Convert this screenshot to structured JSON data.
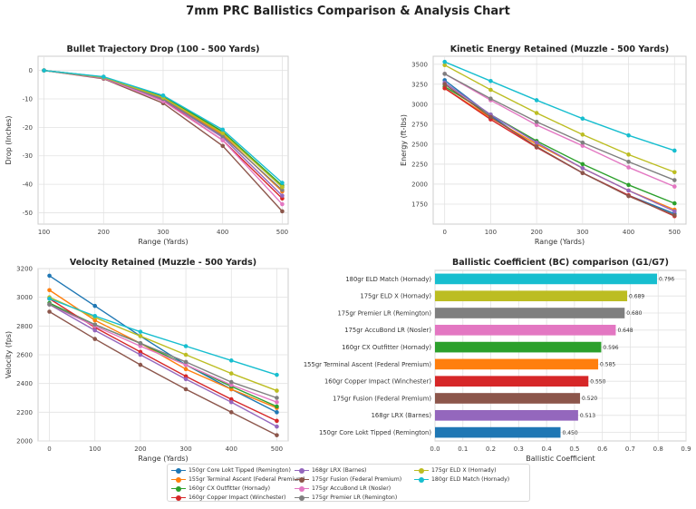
{
  "title": "7mm PRC Ballistics Comparison & Analysis Chart",
  "chart_data": [
    {
      "id": "trajectory",
      "type": "line",
      "title": "Bullet Trajectory Drop (100 - 500 Yards)",
      "xlabel": "Range (Yards)",
      "ylabel": "Drop (Inches)",
      "x": [
        100,
        200,
        300,
        400,
        500
      ],
      "xlim": [
        90,
        510
      ],
      "ylim": [
        -54,
        5
      ],
      "xticks": [
        100,
        200,
        300,
        400,
        500
      ],
      "yticks": [
        0,
        -10,
        -20,
        -30,
        -40,
        -50
      ],
      "grid": true,
      "series": [
        {
          "name": "150gr Core Lokt Tipped (Remington)",
          "values": [
            0,
            -2.3,
            -9.0,
            -21.5,
            -41.0
          ]
        },
        {
          "name": "155gr Terminal Ascent (Federal Premium)",
          "values": [
            0,
            -2.4,
            -9.6,
            -22.5,
            -42.5
          ]
        },
        {
          "name": "160gr CX Outfitter (Hornady)",
          "values": [
            0,
            -2.3,
            -9.0,
            -21.5,
            -40.5
          ]
        },
        {
          "name": "160gr Copper Impact (Winchester)",
          "values": [
            0,
            -2.6,
            -10.5,
            -24.5,
            -45.0
          ]
        },
        {
          "name": "168gr LRX (Barnes)",
          "values": [
            0,
            -2.6,
            -10.2,
            -23.5,
            -44.0
          ]
        },
        {
          "name": "175gr Fusion (Federal Premium)",
          "values": [
            0,
            -2.9,
            -11.5,
            -26.5,
            -49.5
          ]
        },
        {
          "name": "175gr AccuBond LR (Nosler)",
          "values": [
            0,
            -2.7,
            -10.8,
            -24.5,
            -47.0
          ]
        },
        {
          "name": "175gr Premier LR (Remington)",
          "values": [
            0,
            -2.5,
            -10.0,
            -23.0,
            -42.0
          ]
        },
        {
          "name": "175gr ELD X (Hornady)",
          "values": [
            0,
            -2.4,
            -9.5,
            -22.0,
            -41.0
          ]
        },
        {
          "name": "180gr ELD Match (Hornady)",
          "values": [
            0,
            -2.2,
            -8.8,
            -20.8,
            -39.5
          ]
        }
      ]
    },
    {
      "id": "energy",
      "type": "line",
      "title": "Kinetic Energy Retained (Muzzle - 500 Yards)",
      "xlabel": "Range (Yards)",
      "ylabel": "Energy (ft-lbs)",
      "x": [
        0,
        100,
        200,
        300,
        400,
        500
      ],
      "xlim": [
        -25,
        525
      ],
      "ylim": [
        1500,
        3600
      ],
      "xticks": [
        0,
        100,
        200,
        300,
        400,
        500
      ],
      "yticks": [
        1750,
        2000,
        2250,
        2500,
        2750,
        3000,
        3250,
        3500
      ],
      "grid": true,
      "series": [
        {
          "name": "150gr Core Lokt Tipped (Remington)",
          "values": [
            3300,
            2860,
            2460,
            2140,
            1860,
            1630
          ]
        },
        {
          "name": "155gr Terminal Ascent (Federal Premium)",
          "values": [
            3200,
            2830,
            2500,
            2200,
            1920,
            1680
          ]
        },
        {
          "name": "160gr CX Outfitter (Hornady)",
          "values": [
            3220,
            2870,
            2540,
            2250,
            1990,
            1760
          ]
        },
        {
          "name": "160gr Copper Impact (Winchester)",
          "values": [
            3200,
            2810,
            2460,
            2140,
            1860,
            1600
          ]
        },
        {
          "name": "168gr LRX (Barnes)",
          "values": [
            3270,
            2870,
            2520,
            2200,
            1920,
            1660
          ]
        },
        {
          "name": "175gr Fusion (Federal Premium)",
          "values": [
            3250,
            2840,
            2470,
            2140,
            1850,
            1610
          ]
        },
        {
          "name": "175gr AccuBond LR (Nosler)",
          "values": [
            3380,
            3050,
            2740,
            2480,
            2210,
            1970
          ]
        },
        {
          "name": "175gr Premier LR (Remington)",
          "values": [
            3380,
            3070,
            2780,
            2520,
            2280,
            2050
          ]
        },
        {
          "name": "175gr ELD X (Hornady)",
          "values": [
            3490,
            3180,
            2890,
            2620,
            2370,
            2150
          ]
        },
        {
          "name": "180gr ELD Match (Hornady)",
          "values": [
            3530,
            3290,
            3050,
            2820,
            2610,
            2420
          ]
        }
      ]
    },
    {
      "id": "velocity",
      "type": "line",
      "title": "Velocity Retained (Muzzle - 500 Yards)",
      "xlabel": "Range (Yards)",
      "ylabel": "Velocity (fps)",
      "x": [
        0,
        100,
        200,
        300,
        400,
        500
      ],
      "xlim": [
        -25,
        525
      ],
      "ylim": [
        2000,
        3200
      ],
      "xticks": [
        0,
        100,
        200,
        300,
        400,
        500
      ],
      "yticks": [
        2000,
        2200,
        2400,
        2600,
        2800,
        3000,
        3200
      ],
      "grid": true,
      "series": [
        {
          "name": "150gr Core Lokt Tipped (Remington)",
          "values": [
            3150,
            2940,
            2730,
            2530,
            2360,
            2200
          ]
        },
        {
          "name": "155gr Terminal Ascent (Federal Premium)",
          "values": [
            3050,
            2840,
            2680,
            2500,
            2360,
            2230
          ]
        },
        {
          "name": "160gr CX Outfitter (Hornady)",
          "values": [
            2960,
            2810,
            2680,
            2530,
            2380,
            2240
          ]
        },
        {
          "name": "160gr Copper Impact (Winchester)",
          "values": [
            2990,
            2790,
            2620,
            2450,
            2290,
            2140
          ]
        },
        {
          "name": "168gr LRX (Barnes)",
          "values": [
            2950,
            2770,
            2600,
            2430,
            2270,
            2100
          ]
        },
        {
          "name": "175gr Fusion (Federal Premium)",
          "values": [
            2900,
            2710,
            2530,
            2360,
            2200,
            2040
          ]
        },
        {
          "name": "175gr AccuBond LR (Nosler)",
          "values": [
            2950,
            2800,
            2660,
            2530,
            2390,
            2270
          ]
        },
        {
          "name": "175gr Premier LR (Remington)",
          "values": [
            2950,
            2810,
            2680,
            2550,
            2410,
            2300
          ]
        },
        {
          "name": "175gr ELD X (Hornady)",
          "values": [
            3000,
            2860,
            2730,
            2600,
            2470,
            2350
          ]
        },
        {
          "name": "180gr ELD Match (Hornady)",
          "values": [
            2990,
            2870,
            2760,
            2660,
            2560,
            2460
          ]
        }
      ]
    },
    {
      "id": "bc",
      "type": "bar",
      "orientation": "horizontal",
      "title": "Ballistic Coefficient (BC) comparison (G1/G7)",
      "xlabel": "Ballistic Coefficient",
      "ylabel": "",
      "xlim": [
        0,
        0.9
      ],
      "xticks": [
        0.0,
        0.1,
        0.2,
        0.3,
        0.4,
        0.5,
        0.6,
        0.7,
        0.8,
        0.9
      ],
      "grid": true,
      "categories": [
        "180gr ELD Match (Hornady)",
        "175gr ELD X (Hornady)",
        "175gr Premier LR (Remington)",
        "175gr AccuBond LR (Nosler)",
        "160gr CX Outfitter (Hornady)",
        "155gr Terminal Ascent (Federal Premium)",
        "160gr Copper Impact (Winchester)",
        "175gr Fusion (Federal Premium)",
        "168gr LRX (Barnes)",
        "150gr Core Lokt Tipped (Remington)"
      ],
      "values": [
        0.796,
        0.689,
        0.68,
        0.648,
        0.596,
        0.585,
        0.55,
        0.52,
        0.513,
        0.45
      ],
      "value_labels": [
        "0.796",
        "0.689",
        "0.680",
        "0.648",
        "0.596",
        "0.585",
        "0.550",
        "0.520",
        "0.513",
        "0.450"
      ],
      "colors": [
        "#17becf",
        "#bcbd22",
        "#7f7f7f",
        "#e377c2",
        "#2ca02c",
        "#ff7f0e",
        "#d62728",
        "#8c564b",
        "#9467bd",
        "#1f77b4"
      ]
    }
  ],
  "series_colors": {
    "150gr Core Lokt Tipped (Remington)": "#1f77b4",
    "155gr Terminal Ascent (Federal Premium)": "#ff7f0e",
    "160gr CX Outfitter (Hornady)": "#2ca02c",
    "160gr Copper Impact (Winchester)": "#d62728",
    "168gr LRX (Barnes)": "#9467bd",
    "175gr Fusion (Federal Premium)": "#8c564b",
    "175gr AccuBond LR (Nosler)": "#e377c2",
    "175gr Premier LR (Remington)": "#7f7f7f",
    "175gr ELD X (Hornady)": "#bcbd22",
    "180gr ELD Match (Hornady)": "#17becf"
  },
  "legend": {
    "placement": "bottom-center",
    "columns": 3,
    "items": [
      "150gr Core Lokt Tipped (Remington)",
      "155gr Terminal Ascent (Federal Premium)",
      "160gr CX Outfitter (Hornady)",
      "160gr Copper Impact (Winchester)",
      "168gr LRX (Barnes)",
      "175gr Fusion (Federal Premium)",
      "175gr AccuBond LR (Nosler)",
      "175gr Premier LR (Remington)",
      "175gr ELD X (Hornady)",
      "180gr ELD Match (Hornady)"
    ]
  }
}
